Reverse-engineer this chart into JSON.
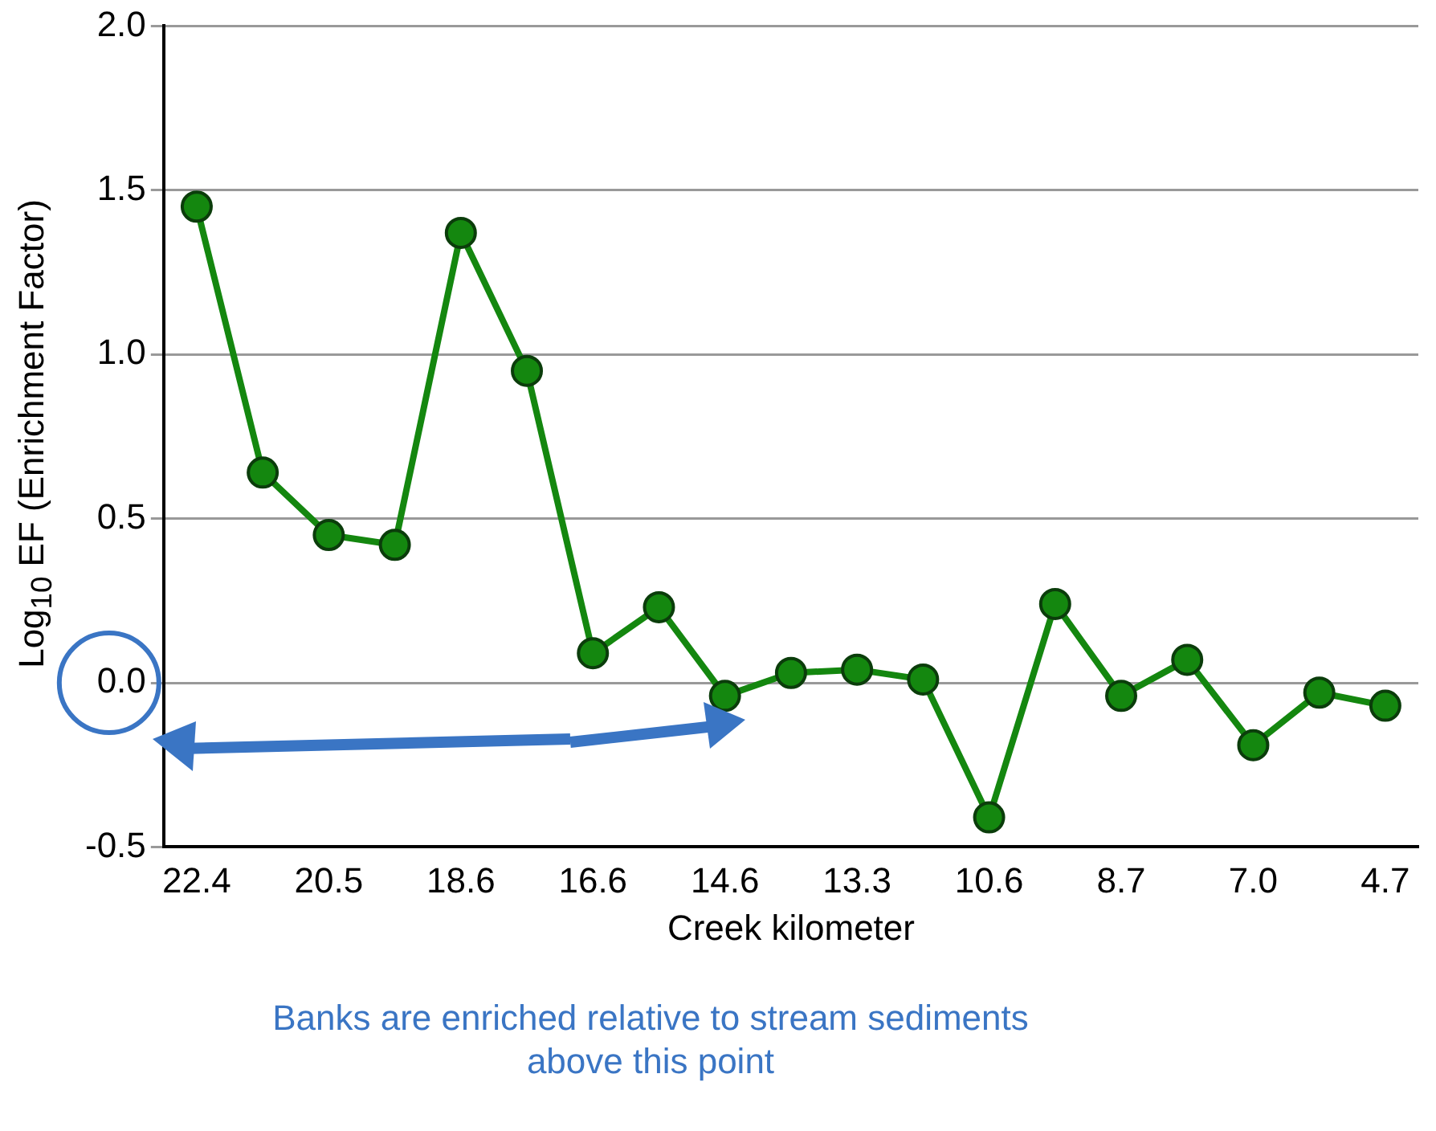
{
  "chart_data": {
    "type": "line",
    "xlabel": "Creek kilometer",
    "ylabel": "Log$_{10}$ EF (Enrichment Factor)",
    "categories": [
      "22.4",
      null,
      "20.5",
      null,
      "18.6",
      null,
      "16.6",
      null,
      "14.6",
      null,
      "13.3",
      null,
      "10.6",
      null,
      "8.7",
      null,
      "7.0",
      null,
      "4.7"
    ],
    "series": [
      {
        "color": "#14870f",
        "values": [
          1.45,
          0.64,
          0.45,
          0.42,
          1.37,
          0.95,
          0.09,
          0.23,
          -0.04,
          0.03,
          0.04,
          0.01,
          -0.41,
          0.24,
          -0.04,
          0.07,
          -0.19,
          -0.03,
          -0.07
        ]
      }
    ],
    "ylim": [
      -0.5,
      2.0
    ],
    "yticks": [
      {
        "value": -0.5,
        "label": "-0.5"
      },
      {
        "value": 0,
        "label": "0.0"
      },
      {
        "value": 0.5,
        "label": "0.5"
      },
      {
        "value": 1,
        "label": "1.0"
      },
      {
        "value": 1.5,
        "label": "1.5"
      },
      {
        "value": 2,
        "label": "2.0"
      }
    ],
    "grid": "y",
    "legend": false,
    "marker": "circle",
    "line_style": "solid",
    "annotations": [
      "Banks are enriched relative to stream sediments above this point"
    ]
  }
}
